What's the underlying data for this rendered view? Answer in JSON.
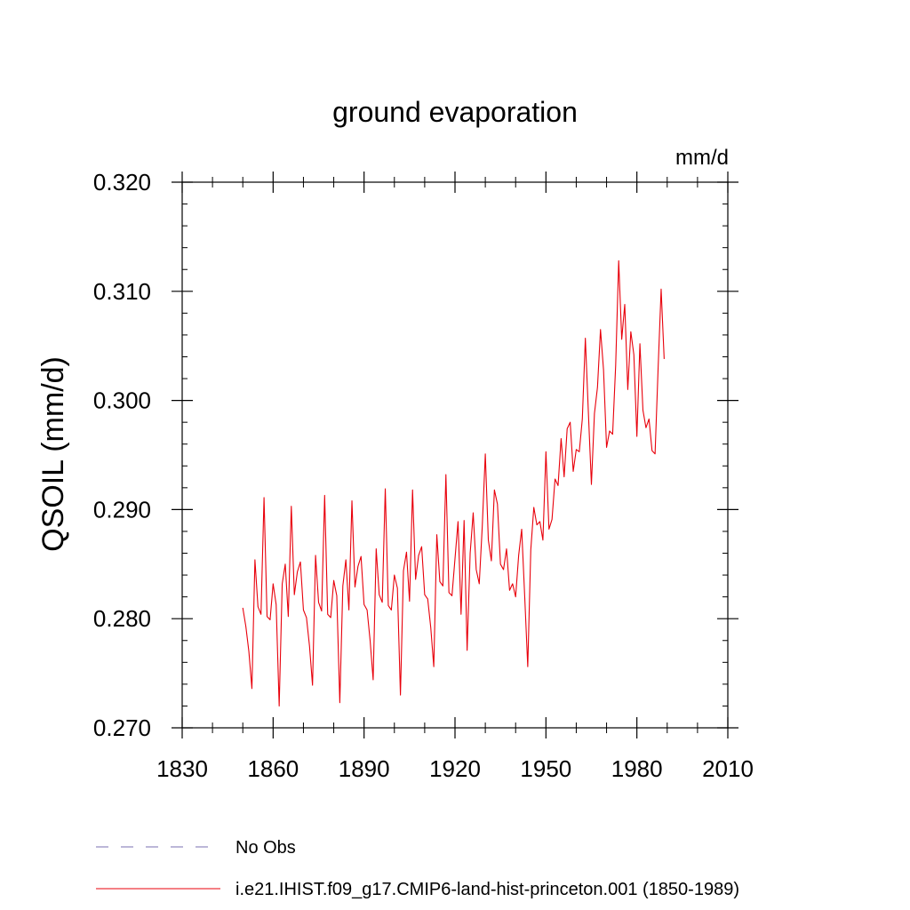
{
  "chart_data": {
    "type": "line",
    "title": "ground evaporation",
    "units_label": "mm/d",
    "ylabel": "QSOIL  (mm/d)",
    "xlabel": "",
    "xlim": [
      1830,
      2010
    ],
    "ylim": [
      0.27,
      0.32
    ],
    "x_ticks": [
      1830,
      1860,
      1890,
      1920,
      1950,
      1980,
      2010
    ],
    "y_ticks": [
      0.27,
      0.28,
      0.29,
      0.3,
      0.31,
      0.32
    ],
    "x_tick_labels": [
      "1830",
      "1860",
      "1890",
      "1920",
      "1950",
      "1980",
      "2010"
    ],
    "y_tick_labels": [
      "0.270",
      "0.280",
      "0.290",
      "0.300",
      "0.310",
      "0.320"
    ],
    "grid": false,
    "legend_position": "bottom-left",
    "series": [
      {
        "name": "No Obs",
        "color": "#7a6fb0",
        "style": "dashed",
        "values": []
      },
      {
        "name": "i.e21.IHIST.f09_g17.CMIP6-land-hist-princeton.001 (1850-1989)",
        "color": "#e8000b",
        "style": "solid",
        "x_start": 1850,
        "values": [
          0.281,
          0.2793,
          0.277,
          0.2736,
          0.2854,
          0.2811,
          0.2804,
          0.2911,
          0.2802,
          0.2799,
          0.2832,
          0.2813,
          0.272,
          0.2832,
          0.285,
          0.2802,
          0.2903,
          0.2822,
          0.2843,
          0.2852,
          0.2808,
          0.2801,
          0.2775,
          0.2739,
          0.2858,
          0.2815,
          0.2807,
          0.2913,
          0.2804,
          0.2801,
          0.2835,
          0.2821,
          0.2723,
          0.283,
          0.2854,
          0.2808,
          0.2908,
          0.2829,
          0.2848,
          0.2857,
          0.2813,
          0.2808,
          0.278,
          0.2744,
          0.2864,
          0.2822,
          0.2815,
          0.2919,
          0.2812,
          0.2808,
          0.284,
          0.2828,
          0.273,
          0.2844,
          0.2861,
          0.2816,
          0.2918,
          0.2836,
          0.2858,
          0.2866,
          0.2822,
          0.2818,
          0.2792,
          0.2756,
          0.2877,
          0.2834,
          0.283,
          0.2932,
          0.2824,
          0.2821,
          0.2855,
          0.2889,
          0.2804,
          0.289,
          0.2771,
          0.286,
          0.2897,
          0.2845,
          0.2832,
          0.2885,
          0.2951,
          0.2872,
          0.2853,
          0.2918,
          0.2905,
          0.285,
          0.2845,
          0.2864,
          0.2826,
          0.2832,
          0.282,
          0.2858,
          0.2882,
          0.282,
          0.2756,
          0.2863,
          0.2902,
          0.2886,
          0.2889,
          0.2872,
          0.2953,
          0.2882,
          0.2891,
          0.2928,
          0.2922,
          0.2965,
          0.293,
          0.2974,
          0.298,
          0.2935,
          0.2955,
          0.2953,
          0.2983,
          0.3057,
          0.2989,
          0.2923,
          0.2988,
          0.3012,
          0.3065,
          0.3028,
          0.2957,
          0.2972,
          0.2969,
          0.3032,
          0.3128,
          0.3056,
          0.3088,
          0.301,
          0.3063,
          0.3042,
          0.2967,
          0.3052,
          0.2991,
          0.2975,
          0.2983,
          0.2954,
          0.2951,
          0.3029,
          0.3102,
          0.3038
        ]
      }
    ]
  }
}
